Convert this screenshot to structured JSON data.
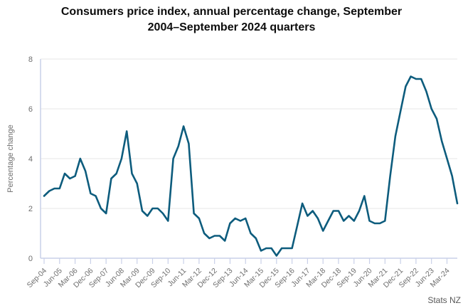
{
  "title_lines": [
    "Consumers price index, annual percentage change, September",
    "2004–September 2024 quarters"
  ],
  "source": "Stats NZ",
  "colors": {
    "line": "#0d5c7d",
    "grid": "#ececec",
    "axis": "#c9d0e8",
    "tick_label": "#6e6e6e",
    "title": "#0d0d0d",
    "source": "#595959"
  },
  "chart_data": {
    "type": "line",
    "title": "Consumers price index, annual percentage change, September 2004–September 2024 quarters",
    "xlabel": "",
    "ylabel": "Percentage change",
    "ylim": [
      0,
      8
    ],
    "yticks": [
      0,
      2,
      4,
      6,
      8
    ],
    "grid": "horizontal",
    "legend_position": "none",
    "x_start": "Sep-04",
    "x_end": "Sep-24",
    "frequency": "quarterly",
    "tick_every": 3,
    "x_tick_labels": [
      "Sep-04",
      "Jun-05",
      "Mar-06",
      "Dec-06",
      "Sep-07",
      "Jun-08",
      "Mar-09",
      "Dec-09",
      "Sep-10",
      "Jun-11",
      "Mar-12",
      "Dec-12",
      "Sep-13",
      "Jun-14",
      "Mar-15",
      "Dec-15",
      "Sep-16",
      "Jun-17",
      "Mar-18",
      "Dec-18",
      "Sep-19",
      "Jun-20",
      "Mar-21",
      "Dec-21",
      "Sep-22",
      "Jun-23",
      "Mar-24"
    ],
    "values": [
      2.5,
      2.7,
      2.8,
      2.8,
      3.4,
      3.2,
      3.3,
      4.0,
      3.5,
      2.6,
      2.5,
      2.0,
      1.8,
      3.2,
      3.4,
      4.0,
      5.1,
      3.4,
      3.0,
      1.9,
      1.7,
      2.0,
      2.0,
      1.8,
      1.5,
      4.0,
      4.5,
      5.3,
      4.6,
      1.8,
      1.6,
      1.0,
      0.8,
      0.9,
      0.9,
      0.7,
      1.4,
      1.6,
      1.5,
      1.6,
      1.0,
      0.8,
      0.3,
      0.4,
      0.4,
      0.1,
      0.4,
      0.4,
      0.4,
      1.3,
      2.2,
      1.7,
      1.9,
      1.6,
      1.1,
      1.5,
      1.9,
      1.9,
      1.5,
      1.7,
      1.5,
      1.9,
      2.5,
      1.5,
      1.4,
      1.4,
      1.5,
      3.3,
      4.9,
      5.9,
      6.9,
      7.3,
      7.2,
      7.2,
      6.7,
      6.0,
      5.6,
      4.7,
      4.0,
      3.3,
      2.2
    ]
  }
}
